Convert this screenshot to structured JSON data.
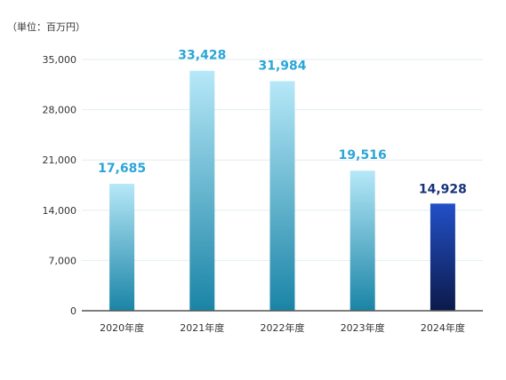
{
  "unit_label": "（単位：百万円）",
  "chart_data": {
    "type": "bar",
    "categories": [
      "2020年度",
      "2021年度",
      "2022年度",
      "2023年度",
      "2024年度"
    ],
    "values": [
      17685,
      33428,
      31984,
      19516,
      14928
    ],
    "value_labels": [
      "17,685",
      "33,428",
      "31,984",
      "19,516",
      "14,928"
    ],
    "yticks": [
      0,
      7000,
      14000,
      21000,
      28000,
      35000
    ],
    "ytick_labels": [
      "0",
      "7,000",
      "14,000",
      "21,000",
      "28,000",
      "35,000"
    ],
    "ylim": [
      0,
      35000
    ],
    "grid": true,
    "colors": {
      "bar_top": "#b6e8f8",
      "bar_bottom": "#1a84a6",
      "highlight_top": "#2350c8",
      "highlight_bottom": "#0c1a4a",
      "label": "#2aa6d8",
      "highlight_label": "#16337a",
      "grid": "#e2eef2",
      "axis": "#555555"
    }
  }
}
